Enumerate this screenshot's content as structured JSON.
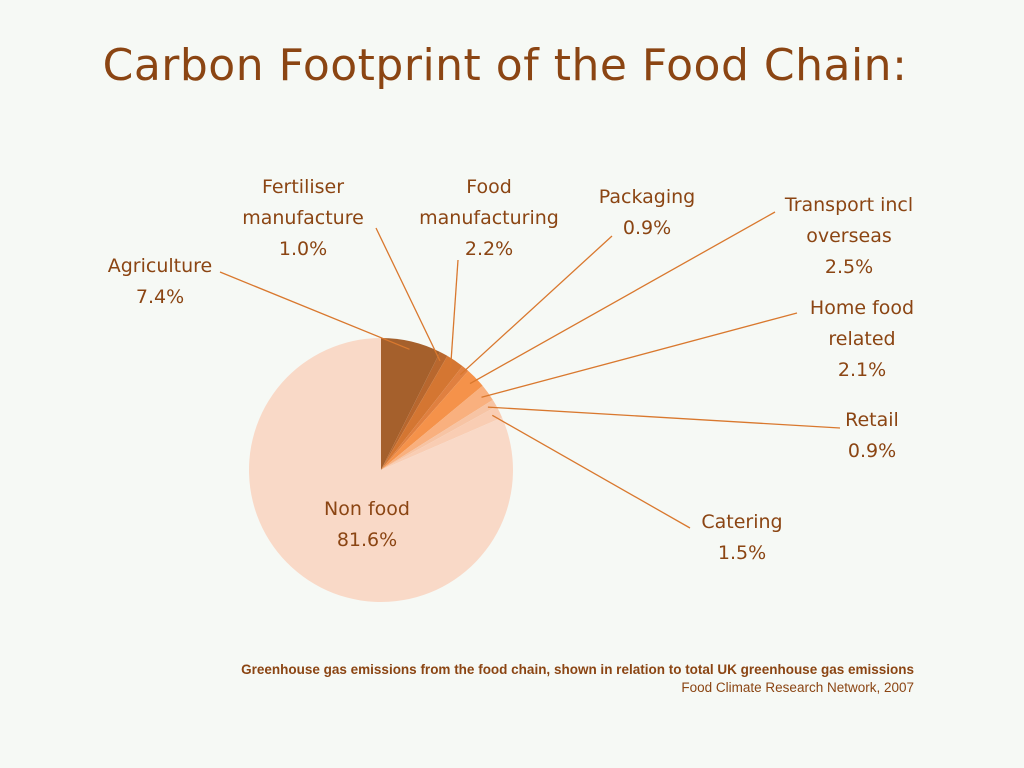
{
  "title": "Carbon Footprint of the Food Chain:",
  "chart_data": {
    "type": "pie",
    "title": "Carbon Footprint of the Food Chain:",
    "slices": [
      {
        "name": "Agriculture",
        "value": 7.4,
        "label_lines": [
          "Agriculture",
          "7.4%"
        ],
        "color": "#a5602c"
      },
      {
        "name": "Fertiliser manufacture",
        "value": 1.0,
        "label_lines": [
          "Fertiliser",
          "manufacture",
          "1.0%"
        ],
        "color": "#b8672e"
      },
      {
        "name": "Food manufacturing",
        "value": 2.2,
        "label_lines": [
          "Food",
          "manufacturing",
          "2.2%"
        ],
        "color": "#d47632"
      },
      {
        "name": "Packaging",
        "value": 0.9,
        "label_lines": [
          "Packaging",
          "0.9%"
        ],
        "color": "#e08040"
      },
      {
        "name": "Transport incl overseas",
        "value": 2.5,
        "label_lines": [
          "Transport incl",
          "overseas",
          "2.5%"
        ],
        "color": "#f5924a"
      },
      {
        "name": "Home food related",
        "value": 2.1,
        "label_lines": [
          "Home food",
          "related",
          "2.1%"
        ],
        "color": "#f9b07e"
      },
      {
        "name": "Retail",
        "value": 0.9,
        "label_lines": [
          "Retail",
          "0.9%"
        ],
        "color": "#f7c4a4"
      },
      {
        "name": "Catering",
        "value": 1.5,
        "label_lines": [
          "Catering",
          "1.5%"
        ],
        "color": "#f9cdb3"
      },
      {
        "name": "Non food",
        "value": 81.6,
        "label_lines": [
          "Non food",
          "81.6%"
        ],
        "color": "#f9d9c7"
      }
    ]
  },
  "caption": {
    "main": "Greenhouse gas emissions from the food chain, shown in relation to total UK greenhouse gas emissions",
    "source": "Food Climate Research Network, 2007"
  },
  "colors": {
    "text": "#8b4513",
    "leader": "#d9782e",
    "background": "#f6f9f5"
  }
}
